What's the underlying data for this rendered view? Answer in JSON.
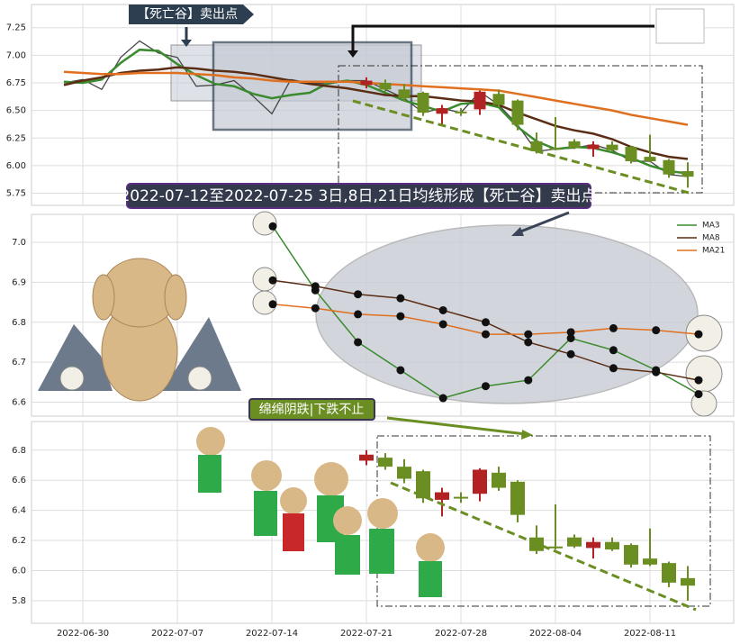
{
  "chart_data": [
    {
      "type": "candlestick",
      "x": [
        "2022-06-28",
        "2022-06-29",
        "2022-06-30",
        "2022-07-01",
        "2022-07-04",
        "2022-07-05",
        "2022-07-06",
        "2022-07-07",
        "2022-07-08",
        "2022-07-11",
        "2022-07-12",
        "2022-07-13",
        "2022-07-14",
        "2022-07-15",
        "2022-07-18",
        "2022-07-19",
        "2022-07-20",
        "2022-07-21",
        "2022-07-22",
        "2022-07-25",
        "2022-07-26",
        "2022-07-27",
        "2022-07-28",
        "2022-07-29",
        "2022-08-01",
        "2022-08-02",
        "2022-08-03",
        "2022-08-04",
        "2022-08-05",
        "2022-08-08",
        "2022-08-09",
        "2022-08-10",
        "2022-08-11",
        "2022-08-12",
        "2022-08-15"
      ],
      "open": [
        null,
        null,
        null,
        null,
        null,
        null,
        null,
        null,
        null,
        null,
        null,
        null,
        null,
        null,
        null,
        null,
        null,
        6.73,
        6.75,
        6.69,
        6.66,
        6.47,
        6.49,
        6.51,
        6.65,
        6.59,
        6.22,
        6.16,
        6.22,
        6.15,
        6.19,
        6.17,
        6.08,
        6.05,
        5.95
      ],
      "high": [
        null,
        null,
        null,
        null,
        null,
        null,
        null,
        null,
        null,
        null,
        null,
        null,
        null,
        null,
        null,
        null,
        null,
        6.8,
        6.78,
        6.74,
        6.67,
        6.55,
        6.52,
        6.68,
        6.69,
        6.6,
        6.3,
        6.44,
        6.24,
        6.22,
        6.22,
        6.18,
        6.28,
        6.06,
        6.03
      ],
      "low": [
        null,
        null,
        null,
        null,
        null,
        null,
        null,
        null,
        null,
        null,
        null,
        null,
        null,
        null,
        null,
        null,
        null,
        6.7,
        6.67,
        6.58,
        6.45,
        6.36,
        6.45,
        6.46,
        6.53,
        6.32,
        6.11,
        6.14,
        6.15,
        6.08,
        6.13,
        6.02,
        6.03,
        5.89,
        5.8
      ],
      "close": [
        null,
        null,
        null,
        null,
        null,
        null,
        null,
        null,
        null,
        null,
        null,
        null,
        null,
        null,
        null,
        null,
        null,
        6.77,
        6.69,
        6.61,
        6.48,
        6.52,
        6.48,
        6.67,
        6.55,
        6.37,
        6.13,
        6.15,
        6.16,
        6.19,
        6.14,
        6.04,
        6.04,
        5.92,
        5.9
      ],
      "up_color": "#b22222",
      "down_color": "#6b8e23",
      "series": [
        {
          "color": "#444444",
          "values": [
            null,
            6.75,
            6.78,
            6.69,
            6.98,
            7.13,
            7.02,
            6.98,
            6.72,
            6.73,
            6.77,
            6.63,
            6.47,
            6.78,
            6.75,
            6.74,
            6.77,
            6.77,
            6.69,
            6.61,
            6.48,
            6.52,
            6.48,
            6.67,
            6.55,
            6.37,
            6.13,
            6.15,
            6.16,
            6.19,
            6.14,
            6.04,
            6.04,
            5.92,
            5.9
          ]
        },
        {
          "color": "#3a8a2e",
          "values": [
            null,
            6.76,
            6.75,
            6.78,
            6.93,
            7.05,
            7.04,
            6.92,
            6.82,
            6.74,
            6.72,
            6.65,
            6.61,
            6.64,
            6.66,
            6.75,
            6.77,
            6.73,
            6.66,
            6.59,
            6.54,
            6.49,
            6.56,
            6.57,
            6.53,
            6.35,
            6.22,
            6.15,
            6.17,
            6.16,
            6.12,
            6.07,
            6.0,
            5.95,
            5.93
          ]
        },
        {
          "color": "#5a2d14",
          "values": [
            null,
            6.73,
            6.77,
            6.8,
            6.84,
            6.86,
            6.87,
            6.89,
            6.88,
            6.86,
            6.85,
            6.83,
            6.8,
            6.77,
            6.74,
            6.72,
            6.7,
            6.67,
            6.64,
            6.63,
            6.63,
            6.61,
            6.59,
            6.58,
            6.55,
            6.48,
            6.42,
            6.36,
            6.32,
            6.29,
            6.24,
            6.17,
            6.12,
            6.08,
            6.06
          ]
        },
        {
          "color": "#e07020",
          "values": [
            null,
            6.85,
            6.84,
            6.83,
            6.83,
            6.84,
            6.84,
            6.84,
            6.83,
            6.82,
            6.8,
            6.79,
            6.77,
            6.76,
            6.76,
            6.76,
            6.76,
            6.75,
            6.74,
            6.73,
            6.72,
            6.71,
            6.7,
            6.69,
            6.68,
            6.65,
            6.62,
            6.59,
            6.56,
            6.53,
            6.5,
            6.46,
            6.43,
            6.4,
            6.37
          ]
        }
      ],
      "ylim": [
        5.64,
        7.46
      ],
      "yticks": [
        5.75,
        {
          "value": 6,
          "label": "6.00"
        },
        6.25,
        {
          "value": 6.5,
          "label": "6.50"
        },
        6.75,
        {
          "value": 7,
          "label": "7.00"
        },
        7.25
      ],
      "grid": true,
      "annotations": [
        "【死亡谷】卖出点",
        "2022-07-12至2022-07-25 3日,8日,21日均线形成【死亡谷】卖出点"
      ]
    },
    {
      "type": "line",
      "categories": [
        null,
        null,
        null,
        null,
        null,
        null,
        null,
        null,
        null,
        null,
        null
      ],
      "series": [
        {
          "name": "MA3",
          "color": "#3a8a2e",
          "values": [
            7.04,
            6.88,
            6.75,
            6.68,
            6.61,
            6.64,
            6.655,
            6.76,
            6.73,
            6.68,
            6.62
          ]
        },
        {
          "name": "MA8",
          "color": "#5a2d14",
          "values": [
            6.905,
            6.89,
            6.87,
            6.86,
            6.83,
            6.8,
            6.75,
            6.72,
            6.685,
            6.675,
            6.655
          ]
        },
        {
          "name": "MA21",
          "color": "#e07020",
          "values": [
            6.845,
            6.835,
            6.82,
            6.815,
            6.795,
            6.77,
            6.77,
            6.775,
            6.785,
            6.78,
            6.77
          ]
        }
      ],
      "ylim": [
        6.565,
        7.07
      ],
      "yticks": [
        6.6,
        6.7,
        6.8,
        6.9,
        {
          "value": 7,
          "label": "7.0"
        }
      ],
      "grid": true,
      "legend": "upper right"
    },
    {
      "type": "candlestick",
      "x": [
        "2022-06-28",
        "2022-06-29",
        "2022-06-30",
        "2022-07-01",
        "2022-07-04",
        "2022-07-05",
        "2022-07-06",
        "2022-07-07",
        "2022-07-08",
        "2022-07-11",
        "2022-07-12",
        "2022-07-13",
        "2022-07-14",
        "2022-07-15",
        "2022-07-18",
        "2022-07-19",
        "2022-07-20",
        "2022-07-21",
        "2022-07-22",
        "2022-07-25",
        "2022-07-26",
        "2022-07-27",
        "2022-07-28",
        "2022-07-29",
        "2022-08-01",
        "2022-08-02",
        "2022-08-03",
        "2022-08-04",
        "2022-08-05",
        "2022-08-08",
        "2022-08-09",
        "2022-08-10",
        "2022-08-11",
        "2022-08-12",
        "2022-08-15"
      ],
      "open": [
        null,
        null,
        null,
        null,
        null,
        null,
        null,
        null,
        null,
        null,
        null,
        null,
        null,
        null,
        null,
        null,
        null,
        6.73,
        6.75,
        6.69,
        6.66,
        6.47,
        6.49,
        6.51,
        6.65,
        6.59,
        6.22,
        6.16,
        6.22,
        6.15,
        6.19,
        6.17,
        6.08,
        6.05,
        5.95
      ],
      "high": [
        null,
        null,
        null,
        null,
        null,
        null,
        null,
        null,
        null,
        null,
        null,
        null,
        null,
        null,
        null,
        null,
        null,
        6.8,
        6.78,
        6.74,
        6.67,
        6.55,
        6.52,
        6.68,
        6.69,
        6.6,
        6.3,
        6.44,
        6.24,
        6.22,
        6.22,
        6.18,
        6.28,
        6.06,
        6.03
      ],
      "low": [
        null,
        null,
        null,
        null,
        null,
        null,
        null,
        null,
        null,
        null,
        null,
        null,
        null,
        null,
        null,
        null,
        null,
        6.7,
        6.67,
        6.58,
        6.45,
        6.36,
        6.45,
        6.46,
        6.53,
        6.32,
        6.11,
        6.14,
        6.15,
        6.08,
        6.13,
        6.02,
        6.03,
        5.89,
        5.8
      ],
      "close": [
        null,
        null,
        null,
        null,
        null,
        null,
        null,
        null,
        null,
        null,
        null,
        null,
        null,
        null,
        null,
        null,
        null,
        6.77,
        6.69,
        6.61,
        6.48,
        6.52,
        6.48,
        6.67,
        6.55,
        6.37,
        6.13,
        6.15,
        6.16,
        6.19,
        6.14,
        6.04,
        6.04,
        5.92,
        5.9
      ],
      "up_color": "#b22222",
      "down_color": "#6b8e23",
      "xticks": [
        "2022-06-30",
        "2022-07-07",
        "2022-07-14",
        "2022-07-21",
        "2022-07-28",
        "2022-08-04",
        "2022-08-11"
      ],
      "ylim": [
        5.65,
        6.99
      ],
      "yticks": [
        5.8,
        {
          "value": 6,
          "label": "6.0"
        },
        6.2,
        6.4,
        6.6,
        6.8
      ],
      "grid": true,
      "annotations": [
        "绵绵阴跌|下跌不止"
      ]
    }
  ]
}
